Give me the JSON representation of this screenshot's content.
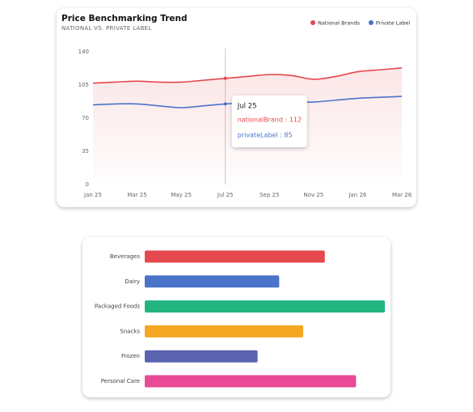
{
  "chart_data": [
    {
      "type": "line",
      "title": "Price Benchmarking Trend",
      "subtitle": "NATIONAL VS. PRIVATE LABEL",
      "categories": [
        "Jan 25",
        null,
        "Mar 25",
        null,
        "May 25",
        null,
        "Jul 25",
        null,
        "Sep 25",
        null,
        "Nov 25",
        null,
        "Jan 26",
        null,
        "Mar 26"
      ],
      "series": [
        {
          "name": "National Brands",
          "color": "#e5484d",
          "values": [
            107,
            108,
            109,
            108,
            108,
            110,
            112,
            114,
            116,
            115,
            111,
            114,
            119,
            121,
            123
          ]
        },
        {
          "name": "Private Label",
          "color": "#4a74c9",
          "values": [
            84,
            85,
            85,
            83,
            81,
            83,
            85,
            86,
            87,
            87,
            87,
            89,
            91,
            92,
            93
          ]
        }
      ],
      "ylim": [
        0,
        140
      ],
      "yticks": [
        0,
        35,
        70,
        105,
        140
      ],
      "grid": false,
      "legend": "top-right",
      "tooltip": {
        "title": "Jul 25",
        "lines": [
          "nationalBrand : 112",
          "privateLabel : 85"
        ]
      }
    },
    {
      "type": "hbar",
      "categories": [
        "Beverages",
        "Dairy",
        "Packaged Foods",
        "Snacks",
        "Frozen",
        "Personal Care"
      ],
      "values": [
        75,
        56,
        100,
        66,
        47,
        88
      ],
      "colors": [
        "#e5484d",
        "#4a74c9",
        "#22b57f",
        "#f5a623",
        "#5b62b0",
        "#e84a95"
      ],
      "xlim": [
        0,
        100
      ]
    }
  ]
}
